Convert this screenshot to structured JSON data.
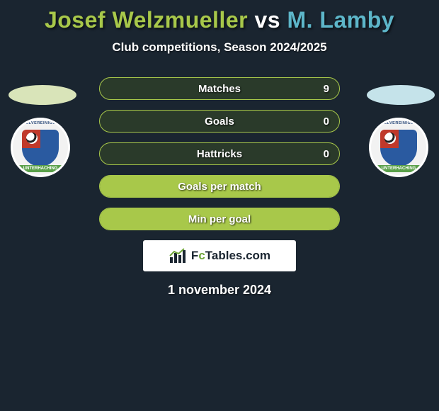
{
  "title": {
    "player1": "Josef Welzmueller",
    "vs": "vs",
    "player2": "M. Lamby",
    "p1_color": "#a8c84a",
    "p2_color": "#5db6c9"
  },
  "subtitle": "Club competitions, Season 2024/2025",
  "crest": {
    "arc_top": "SPIELVEREINIGUNG",
    "banner": "UNTERHACHING"
  },
  "stats": [
    {
      "label": "Matches",
      "lval": "",
      "rval": "9",
      "fill_pct": 0,
      "fill_color": "#a8c84a",
      "border": "#a8c84a"
    },
    {
      "label": "Goals",
      "lval": "",
      "rval": "0",
      "fill_pct": 0,
      "fill_color": "#a8c84a",
      "border": "#a8c84a"
    },
    {
      "label": "Hattricks",
      "lval": "",
      "rval": "0",
      "fill_pct": 0,
      "fill_color": "#a8c84a",
      "border": "#a8c84a"
    },
    {
      "label": "Goals per match",
      "lval": "",
      "rval": "",
      "fill_pct": 100,
      "fill_color": "#a8c84a",
      "border": "#a8c84a"
    },
    {
      "label": "Min per goal",
      "lval": "",
      "rval": "",
      "fill_pct": 100,
      "fill_color": "#a8c84a",
      "border": "#a8c84a"
    }
  ],
  "brand": {
    "prefix": "F",
    "c": "c",
    "suffix": "Tables.com"
  },
  "date": "1 november 2024",
  "colors": {
    "bg": "#1a2530",
    "bar_bg": "#2a3a2a",
    "text": "#ffffff"
  }
}
